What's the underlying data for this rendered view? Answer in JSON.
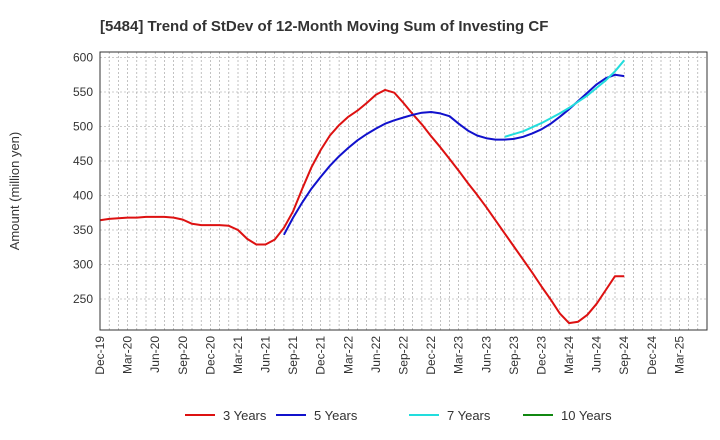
{
  "chart_data": {
    "type": "line",
    "title": "[5484]  Trend of StDev of 12-Month Moving Sum of Investing CF",
    "ylabel": "Amount (million yen)",
    "xlabel": "",
    "ylim": [
      205,
      608
    ],
    "yticks": [
      250,
      300,
      350,
      400,
      450,
      500,
      550,
      600
    ],
    "x_tick_labels": [
      "Dec-19",
      "Mar-20",
      "Jun-20",
      "Sep-20",
      "Dec-20",
      "Mar-21",
      "Jun-21",
      "Sep-21",
      "Dec-21",
      "Mar-22",
      "Jun-22",
      "Sep-22",
      "Dec-22",
      "Mar-23",
      "Jun-23",
      "Sep-23",
      "Dec-23",
      "Mar-24",
      "Jun-24",
      "Sep-24",
      "Dec-24",
      "Mar-25"
    ],
    "grid": true,
    "legend_position": "bottom",
    "series": [
      {
        "name": "3 Years",
        "color": "#dd1111",
        "x": [
          "Dec-19",
          "Jan-20",
          "Feb-20",
          "Mar-20",
          "Apr-20",
          "May-20",
          "Jun-20",
          "Jul-20",
          "Aug-20",
          "Sep-20",
          "Oct-20",
          "Nov-20",
          "Dec-20",
          "Jan-21",
          "Feb-21",
          "Mar-21",
          "Apr-21",
          "May-21",
          "Jun-21",
          "Jul-21",
          "Aug-21",
          "Sep-21",
          "Oct-21",
          "Nov-21",
          "Dec-21",
          "Jan-22",
          "Feb-22",
          "Mar-22",
          "Apr-22",
          "May-22",
          "Jun-22",
          "Jul-22",
          "Aug-22",
          "Sep-22",
          "Oct-22",
          "Nov-22",
          "Dec-22",
          "Jan-23",
          "Feb-23",
          "Mar-23",
          "Apr-23",
          "May-23",
          "Jun-23",
          "Jul-23",
          "Aug-23",
          "Sep-23",
          "Oct-23",
          "Nov-23",
          "Dec-23",
          "Jan-24",
          "Feb-24",
          "Mar-24",
          "Apr-24",
          "May-24",
          "Jun-24",
          "Jul-24",
          "Aug-24",
          "Sep-24"
        ],
        "values": [
          364,
          366,
          367,
          368,
          368,
          369,
          369,
          369,
          368,
          365,
          359,
          357,
          357,
          357,
          356,
          350,
          337,
          329,
          329,
          336,
          353,
          377,
          410,
          441,
          466,
          487,
          502,
          514,
          523,
          534,
          546,
          553,
          549,
          534,
          518,
          503,
          486,
          470,
          453,
          436,
          418,
          401,
          383,
          364,
          345,
          326,
          307,
          288,
          268,
          249,
          229,
          215,
          217,
          227,
          243,
          263,
          283,
          283
        ]
      },
      {
        "name": "5 Years",
        "color": "#1111cc",
        "x": [
          "Aug-21",
          "Sep-21",
          "Oct-21",
          "Nov-21",
          "Dec-21",
          "Jan-22",
          "Feb-22",
          "Mar-22",
          "Apr-22",
          "May-22",
          "Jun-22",
          "Jul-22",
          "Aug-22",
          "Sep-22",
          "Oct-22",
          "Nov-22",
          "Dec-22",
          "Jan-23",
          "Feb-23",
          "Mar-23",
          "Apr-23",
          "May-23",
          "Jun-23",
          "Jul-23",
          "Aug-23",
          "Sep-23",
          "Oct-23",
          "Nov-23",
          "Dec-23",
          "Jan-24",
          "Feb-24",
          "Mar-24",
          "Apr-24",
          "May-24",
          "Jun-24",
          "Jul-24",
          "Aug-24",
          "Sep-24"
        ],
        "values": [
          343,
          368,
          390,
          410,
          427,
          443,
          457,
          469,
          480,
          489,
          497,
          504,
          509,
          513,
          517,
          520,
          521,
          519,
          515,
          504,
          494,
          487,
          483,
          481,
          481,
          482,
          485,
          490,
          496,
          504,
          514,
          525,
          537,
          549,
          561,
          570,
          575,
          573
        ]
      },
      {
        "name": "7 Years",
        "color": "#22dddd",
        "x": [
          "Aug-23",
          "Sep-23",
          "Oct-23",
          "Nov-23",
          "Dec-23",
          "Jan-24",
          "Feb-24",
          "Mar-24",
          "Apr-24",
          "May-24",
          "Jun-24",
          "Jul-24",
          "Aug-24",
          "Sep-24"
        ],
        "values": [
          485,
          489,
          493,
          499,
          505,
          512,
          519,
          527,
          536,
          545,
          556,
          567,
          580,
          596
        ]
      },
      {
        "name": "10 Years",
        "color": "#118811",
        "x": [],
        "values": []
      }
    ]
  }
}
